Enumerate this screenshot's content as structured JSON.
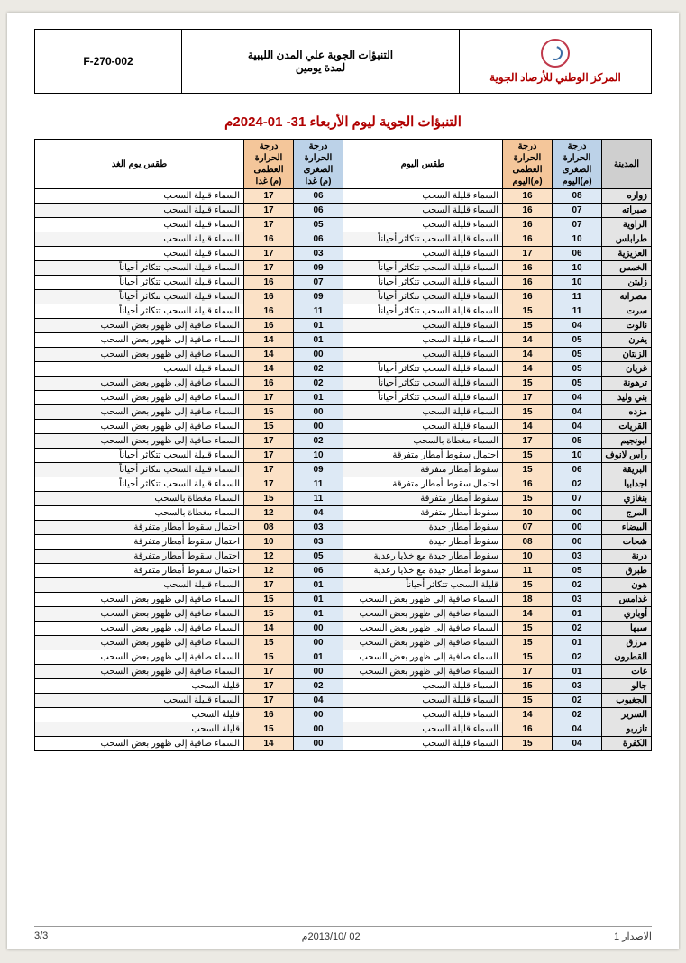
{
  "header": {
    "code": "F-270-002",
    "mid": "التنبؤات الجوية علي المدن الليبية\nلمدة يومين",
    "org": "المركز الوطني للأرصاد الجوية"
  },
  "title": "التنبؤات الجوية ليوم الأربعاء  31- 01-2024م",
  "columns": {
    "city": "المدينة",
    "min_today": "درجة الحرارة الصغرى (م)اليوم",
    "max_today": "درجة الحرارة العظمى (م)اليوم",
    "wx_today": "طقس اليوم",
    "min_tom": "درجة الحرارة الصغرى (م) غدا",
    "max_tom": "درجة الحرارة العظمى (م) غدا",
    "wx_tom": "طقس يوم الغد"
  },
  "rows": [
    {
      "city": "زواره",
      "min_t": "08",
      "max_t": "16",
      "wx_t": "السماء قليلة السحب",
      "min_m": "06",
      "max_m": "17",
      "wx_m": "السماء قليلة السحب"
    },
    {
      "city": "صبراته",
      "min_t": "07",
      "max_t": "16",
      "wx_t": "السماء قليلة السحب",
      "min_m": "06",
      "max_m": "17",
      "wx_m": "السماء قليلة السحب"
    },
    {
      "city": "الزاوية",
      "min_t": "07",
      "max_t": "16",
      "wx_t": "السماء قليلة السحب",
      "min_m": "05",
      "max_m": "17",
      "wx_m": "السماء قليلة السحب"
    },
    {
      "city": "طرابلس",
      "min_t": "10",
      "max_t": "16",
      "wx_t": "السماء قليلة السحب تتكاثر أحياناً",
      "min_m": "06",
      "max_m": "16",
      "wx_m": "السماء قليلة السحب"
    },
    {
      "city": "العزيزية",
      "min_t": "06",
      "max_t": "17",
      "wx_t": "السماء قليلة السحب",
      "min_m": "03",
      "max_m": "17",
      "wx_m": "السماء قليلة السحب"
    },
    {
      "city": "الخمس",
      "min_t": "10",
      "max_t": "16",
      "wx_t": "السماء قليلة السحب تتكاثر أحياناً",
      "min_m": "09",
      "max_m": "17",
      "wx_m": "السماء قليلة السحب تتكاثر أحياناً"
    },
    {
      "city": "زليتن",
      "min_t": "10",
      "max_t": "16",
      "wx_t": "السماء قليلة السحب تتكاثر أحياناً",
      "min_m": "07",
      "max_m": "16",
      "wx_m": "السماء قليلة السحب تتكاثر أحياناً"
    },
    {
      "city": "مصراته",
      "min_t": "11",
      "max_t": "16",
      "wx_t": "السماء قليلة السحب تتكاثر أحياناً",
      "min_m": "09",
      "max_m": "16",
      "wx_m": "السماء قليلة السحب تتكاثر أحياناً"
    },
    {
      "city": "سرت",
      "min_t": "11",
      "max_t": "15",
      "wx_t": "السماء قليلة السحب تتكاثر أحياناً",
      "min_m": "11",
      "max_m": "16",
      "wx_m": "السماء قليلة السحب تتكاثر أحياناً"
    },
    {
      "city": "نالوت",
      "min_t": "04",
      "max_t": "15",
      "wx_t": "السماء قليلة السحب",
      "min_m": "01",
      "max_m": "16",
      "wx_m": "السماء صافية إلى ظهور بعض السحب"
    },
    {
      "city": "يفرن",
      "min_t": "05",
      "max_t": "14",
      "wx_t": "السماء قليلة السحب",
      "min_m": "01",
      "max_m": "14",
      "wx_m": "السماء صافية إلى ظهور بعض السحب"
    },
    {
      "city": "الزنتان",
      "min_t": "05",
      "max_t": "14",
      "wx_t": "السماء قليلة السحب",
      "min_m": "00",
      "max_m": "14",
      "wx_m": "السماء صافية إلى ظهور بعض السحب"
    },
    {
      "city": "غريان",
      "min_t": "05",
      "max_t": "14",
      "wx_t": "السماء قليلة السحب تتكاثر أحياناً",
      "min_m": "02",
      "max_m": "14",
      "wx_m": "السماء قليلة السحب"
    },
    {
      "city": "ترهونة",
      "min_t": "05",
      "max_t": "15",
      "wx_t": "السماء قليلة السحب تتكاثر أحياناً",
      "min_m": "02",
      "max_m": "16",
      "wx_m": "السماء صافية إلى ظهور بعض السحب"
    },
    {
      "city": "بني وليد",
      "min_t": "04",
      "max_t": "17",
      "wx_t": "السماء قليلة السحب تتكاثر أحياناً",
      "min_m": "01",
      "max_m": "17",
      "wx_m": "السماء صافية إلى ظهور بعض السحب"
    },
    {
      "city": "مزده",
      "min_t": "04",
      "max_t": "15",
      "wx_t": "السماء قليلة السحب",
      "min_m": "00",
      "max_m": "15",
      "wx_m": "السماء صافية إلى ظهور بعض السحب"
    },
    {
      "city": "القريات",
      "min_t": "04",
      "max_t": "14",
      "wx_t": "السماء قليلة السحب",
      "min_m": "00",
      "max_m": "15",
      "wx_m": "السماء صافية إلى ظهور بعض السحب"
    },
    {
      "city": "ابونجيم",
      "min_t": "05",
      "max_t": "17",
      "wx_t": "السماء مغطاة بالسحب",
      "min_m": "02",
      "max_m": "17",
      "wx_m": "السماء صافية إلى ظهور بعض السحب"
    },
    {
      "city": "رأس لانوف",
      "min_t": "10",
      "max_t": "15",
      "wx_t": "احتمال سقوط أمطار متفرقة",
      "min_m": "10",
      "max_m": "17",
      "wx_m": "السماء قليلة السحب تتكاثر أحياناً"
    },
    {
      "city": "البريقة",
      "min_t": "06",
      "max_t": "15",
      "wx_t": "سقوط أمطار متفرقة",
      "min_m": "09",
      "max_m": "17",
      "wx_m": "السماء قليلة السحب تتكاثر أحياناً"
    },
    {
      "city": "اجدابيا",
      "min_t": "02",
      "max_t": "16",
      "wx_t": "احتمال سقوط أمطار متفرقة",
      "min_m": "11",
      "max_m": "17",
      "wx_m": "السماء قليلة السحب تتكاثر أحياناً"
    },
    {
      "city": "بنغازي",
      "min_t": "07",
      "max_t": "15",
      "wx_t": "سقوط أمطار متفرقة",
      "min_m": "11",
      "max_m": "15",
      "wx_m": "السماء مغطاة بالسحب"
    },
    {
      "city": "المرج",
      "min_t": "00",
      "max_t": "10",
      "wx_t": "سقوط أمطار متفرقة",
      "min_m": "04",
      "max_m": "12",
      "wx_m": "السماء مغطاة بالسحب"
    },
    {
      "city": "البيضاء",
      "min_t": "00",
      "max_t": "07",
      "wx_t": "سقوط أمطار جيدة",
      "min_m": "03",
      "max_m": "08",
      "wx_m": "احتمال سقوط أمطار متفرقة"
    },
    {
      "city": "شحات",
      "min_t": "00",
      "max_t": "08",
      "wx_t": "سقوط أمطار جيدة",
      "min_m": "03",
      "max_m": "10",
      "wx_m": "احتمال سقوط أمطار متفرقة"
    },
    {
      "city": "درنة",
      "min_t": "03",
      "max_t": "10",
      "wx_t": "سقوط أمطار جيدة مع خلايا رعدية",
      "min_m": "05",
      "max_m": "12",
      "wx_m": "احتمال سقوط أمطار متفرقة"
    },
    {
      "city": "طبرق",
      "min_t": "05",
      "max_t": "11",
      "wx_t": "سقوط أمطار جيدة مع خلايا رعدية",
      "min_m": "06",
      "max_m": "12",
      "wx_m": "احتمال سقوط أمطار متفرقة"
    },
    {
      "city": "هون",
      "min_t": "02",
      "max_t": "15",
      "wx_t": "قليلة السحب تتكاثر أحياناً",
      "min_m": "01",
      "max_m": "17",
      "wx_m": "السماء قليلة السحب"
    },
    {
      "city": "غدامس",
      "min_t": "03",
      "max_t": "18",
      "wx_t": "السماء صافية إلى ظهور بعض السحب",
      "min_m": "01",
      "max_m": "15",
      "wx_m": "السماء صافية إلى ظهور بعض السحب"
    },
    {
      "city": "أوباري",
      "min_t": "01",
      "max_t": "14",
      "wx_t": "السماء صافية إلى ظهور بعض السحب",
      "min_m": "01",
      "max_m": "15",
      "wx_m": "السماء صافية إلى ظهور بعض السحب"
    },
    {
      "city": "سبها",
      "min_t": "02",
      "max_t": "15",
      "wx_t": "السماء صافية إلى ظهور بعض السحب",
      "min_m": "00",
      "max_m": "14",
      "wx_m": "السماء صافية إلى ظهور بعض السحب"
    },
    {
      "city": "مرزق",
      "min_t": "01",
      "max_t": "15",
      "wx_t": "السماء صافية إلى ظهور بعض السحب",
      "min_m": "00",
      "max_m": "15",
      "wx_m": "السماء صافية إلى ظهور بعض السحب"
    },
    {
      "city": "القطرون",
      "min_t": "02",
      "max_t": "15",
      "wx_t": "السماء صافية إلى ظهور بعض السحب",
      "min_m": "01",
      "max_m": "15",
      "wx_m": "السماء صافية إلى ظهور بعض السحب"
    },
    {
      "city": "غات",
      "min_t": "01",
      "max_t": "17",
      "wx_t": "السماء صافية إلى ظهور بعض السحب",
      "min_m": "00",
      "max_m": "17",
      "wx_m": "السماء صافية إلى ظهور بعض السحب"
    },
    {
      "city": "جالو",
      "min_t": "03",
      "max_t": "15",
      "wx_t": "السماء قليلة السحب",
      "min_m": "02",
      "max_m": "17",
      "wx_m": "قليلة السحب"
    },
    {
      "city": "الجغبوب",
      "min_t": "02",
      "max_t": "15",
      "wx_t": "السماء قليلة السحب",
      "min_m": "04",
      "max_m": "17",
      "wx_m": "السماء قليلة السحب"
    },
    {
      "city": "السرير",
      "min_t": "02",
      "max_t": "14",
      "wx_t": "السماء قليلة السحب",
      "min_m": "00",
      "max_m": "16",
      "wx_m": "قليلة السحب"
    },
    {
      "city": "تازربو",
      "min_t": "04",
      "max_t": "16",
      "wx_t": "السماء قليلة السحب",
      "min_m": "00",
      "max_m": "15",
      "wx_m": "قليلة السحب"
    },
    {
      "city": "الكفرة",
      "min_t": "04",
      "max_t": "15",
      "wx_t": "السماء قليلة السحب",
      "min_m": "00",
      "max_m": "14",
      "wx_m": "السماء صافية إلى ظهور بعض السحب"
    }
  ],
  "footer": {
    "issue": "الاصدار 1",
    "date": "02 /2013/10م",
    "page": "3/3"
  }
}
